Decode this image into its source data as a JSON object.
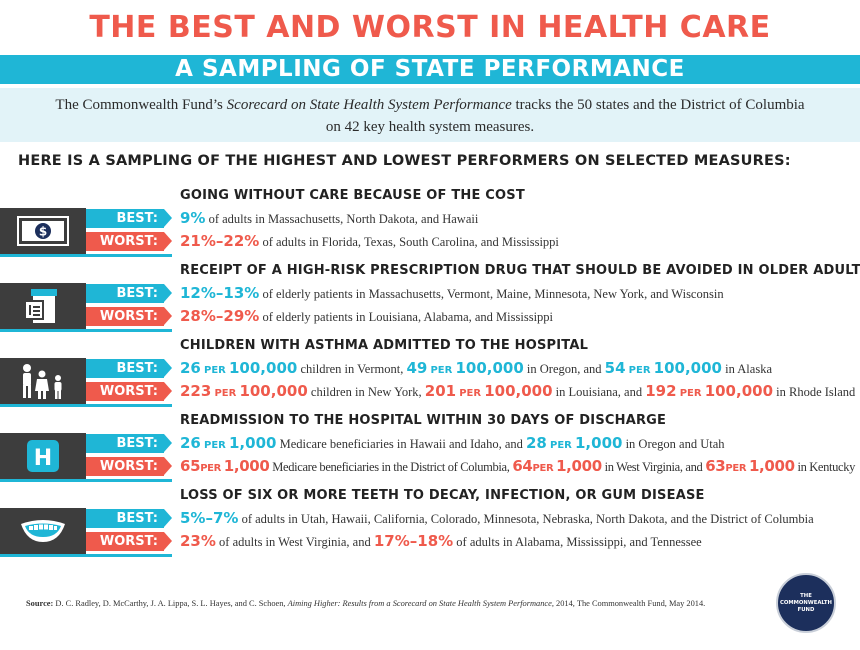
{
  "header": {
    "title": "THE BEST AND WORST IN HEALTH CARE",
    "subtitle": "A SAMPLING OF STATE PERFORMANCE",
    "intro_before": "The Commonwealth Fund’s ",
    "intro_italic": "Scorecard on State Health System Performance",
    "intro_after": " tracks the 50 states and the District of Columbia",
    "intro_line2": "on 42 key health system measures."
  },
  "lead": "HERE IS A SAMPLING OF THE HIGHEST AND LOWEST PERFORMERS ON SELECTED MEASURES:",
  "labels": {
    "best": "BEST:",
    "worst": "WORST:"
  },
  "per": "PER",
  "measures": [
    {
      "title": "GOING WITHOUT CARE BECAUSE OF THE COST",
      "icon": "money-icon",
      "best": {
        "num": "9%",
        "text": " of adults in Massachusetts, North Dakota, and Hawaii"
      },
      "worst": {
        "num": "21%–22%",
        "text": " of adults in Florida, Texas, South Carolina, and Mississippi"
      }
    },
    {
      "title": "RECEIPT OF A HIGH-RISK PRESCRIPTION DRUG THAT SHOULD BE AVOIDED IN OLDER ADULTS",
      "icon": "prescription-bottle-icon",
      "best": {
        "num": "12%–13%",
        "text": " of elderly patients in Massachusetts, Vermont, Maine, Minnesota, New York, and Wisconsin"
      },
      "worst": {
        "num": "28%–29%",
        "text": " of elderly patients in Louisiana, Alabama, and Mississippi"
      }
    },
    {
      "title": "CHILDREN WITH ASTHMA ADMITTED TO THE HOSPITAL",
      "icon": "family-icon",
      "best": {
        "n1": "26",
        "u1": "100,000",
        "t1": " children in Vermont, ",
        "n2": "49",
        "u2": "100,000",
        "t2": " in Oregon, and ",
        "n3": "54",
        "u3": "100,000",
        "t3": " in Alaska"
      },
      "worst": {
        "n1": "223",
        "u1": "100,000",
        "t1": " children in New York, ",
        "n2": "201",
        "u2": "100,000",
        "t2": " in Louisiana, and ",
        "n3": "192",
        "u3": "100,000",
        "t3": " in Rhode Island"
      }
    },
    {
      "title": "READMISSION TO THE HOSPITAL WITHIN 30 DAYS OF DISCHARGE",
      "icon": "hospital-icon",
      "best": {
        "n1": "26",
        "u1": "1,000",
        "t1": " Medicare beneficiaries in Hawaii and Idaho, and ",
        "n2": "28",
        "u2": "1,000",
        "t2": " in Oregon and Utah"
      },
      "worst": {
        "n1": "65",
        "u1": "1,000",
        "t1": " Medicare beneficiaries in the District of Columbia, ",
        "n2": "64",
        "u2": "1,000",
        "t2": " in West Virginia, and ",
        "n3": "63",
        "u3": "1,000",
        "t3": " in Kentucky"
      }
    },
    {
      "title": "LOSS OF SIX OR MORE TEETH TO DECAY, INFECTION, OR GUM DISEASE",
      "icon": "smile-teeth-icon",
      "best": {
        "num": "5%–7%",
        "text": " of adults in Utah, Hawaii, California, Colorado, Minnesota, Nebraska, North Dakota, and the District of Columbia"
      },
      "worst": {
        "n1": "23%",
        "t1": " of adults in West Virginia, and ",
        "n2": "17%–18%",
        "t2": " of adults in Alabama, Mississippi, and Tennessee"
      }
    }
  ],
  "source": {
    "label": "Source:",
    "before": " D. C. Radley, D. McCarthy, J. A. Lippa, S. L. Hayes, and C. Schoen, ",
    "italic": "Aiming Higher: Results from a Scorecard on State Health System Performance",
    "after": ", 2014, The Commonwealth Fund, May 2014."
  },
  "logo": {
    "line1": "THE",
    "line2": "COMMONWEALTH",
    "line3": "FUND"
  },
  "colors": {
    "accent_blue": "#1fb6d6",
    "accent_red": "#ef5a4c",
    "dark": "#3d3d3d",
    "navy": "#1c2f5c"
  }
}
